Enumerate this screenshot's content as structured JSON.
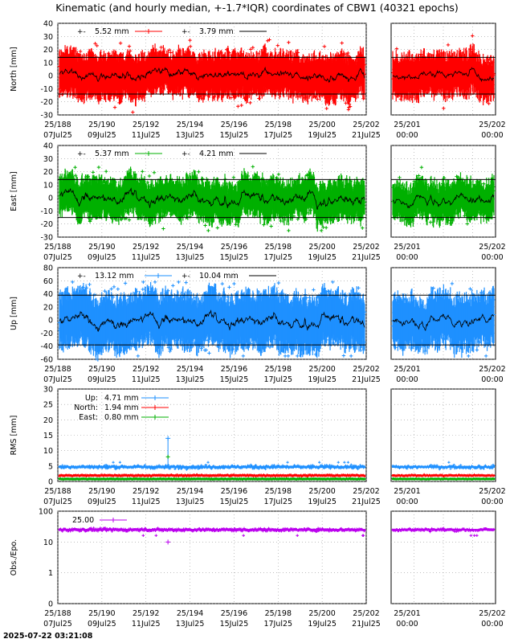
{
  "title": "Kinematic (and hourly median, +-1.7*IQR) coordinates of CBW1 (40321 epochs)",
  "timestamp": "2025-07-22 03:21:08",
  "colors": {
    "north": "#ff0000",
    "east": "#00b000",
    "up": "#1e90ff",
    "obs": "#bb00ee",
    "median": "#000000"
  },
  "chart_data": [
    {
      "id": "north",
      "type": "scatter",
      "ylabel": "North [mm]",
      "ylim": [
        -30,
        40
      ],
      "yticks": [
        -30,
        -20,
        -10,
        0,
        10,
        20,
        30,
        40
      ],
      "iqr_band": [
        -14,
        14
      ],
      "legend": [
        {
          "text": "5.52 mm",
          "color": "#ff0000",
          "marker": "+-"
        },
        {
          "text": "3.79 mm",
          "color": "#000000",
          "marker": "+-"
        }
      ],
      "series": [
        {
          "kind": "kinematic",
          "color": "#ff0000",
          "spread": 9,
          "max": 40,
          "min": -30
        },
        {
          "kind": "median",
          "color": "#000000",
          "spread": 3
        }
      ]
    },
    {
      "id": "east",
      "type": "scatter",
      "ylabel": "East [mm]",
      "ylim": [
        -30,
        40
      ],
      "yticks": [
        -30,
        -20,
        -10,
        0,
        10,
        20,
        30,
        40
      ],
      "iqr_band": [
        -15,
        14
      ],
      "legend": [
        {
          "text": "5.37 mm",
          "color": "#00b000",
          "marker": "+-"
        },
        {
          "text": "4.21 mm",
          "color": "#000000",
          "marker": "+-"
        }
      ],
      "series": [
        {
          "kind": "kinematic",
          "color": "#00b000",
          "spread": 8,
          "max": 32,
          "min": -25
        },
        {
          "kind": "median",
          "color": "#000000",
          "spread": 4
        }
      ]
    },
    {
      "id": "up",
      "type": "scatter",
      "ylabel": "Up [mm]",
      "ylim": [
        -60,
        80
      ],
      "yticks": [
        -60,
        -40,
        -20,
        0,
        20,
        40,
        60,
        80
      ],
      "iqr_band": [
        -38,
        38
      ],
      "legend": [
        {
          "text": "13.12 mm",
          "color": "#1e90ff",
          "marker": "+-"
        },
        {
          "text": "10.04 mm",
          "color": "#000000",
          "marker": "+-"
        }
      ],
      "series": [
        {
          "kind": "kinematic",
          "color": "#1e90ff",
          "spread": 22,
          "max": 58,
          "min": -55
        },
        {
          "kind": "median",
          "color": "#000000",
          "spread": 8
        }
      ]
    },
    {
      "id": "rms",
      "type": "scatter",
      "ylabel": "RMS [mm]",
      "ylim": [
        0,
        30
      ],
      "yticks": [
        0,
        5,
        10,
        15,
        20,
        25,
        30
      ],
      "legend": [
        {
          "label": "Up:",
          "text": "4.71 mm",
          "color": "#1e90ff"
        },
        {
          "label": "North:",
          "text": "1.94 mm",
          "color": "#ff0000"
        },
        {
          "label": "East:",
          "text": "0.80 mm",
          "color": "#00b000"
        }
      ],
      "series": [
        {
          "name": "Up",
          "color": "#1e90ff",
          "mean": 4.71
        },
        {
          "name": "North",
          "color": "#ff0000",
          "mean": 1.94
        },
        {
          "name": "East",
          "color": "#00b000",
          "mean": 0.8
        }
      ]
    },
    {
      "id": "obs",
      "type": "scatter",
      "ylabel": "Obs./Epo.",
      "yscale": "log",
      "ylim": [
        0,
        100
      ],
      "yticks": [
        "0",
        "1",
        "10",
        "100"
      ],
      "legend": [
        {
          "text": "25.00",
          "color": "#bb00ee",
          "marker": "+-"
        }
      ],
      "series": [
        {
          "color": "#bb00ee",
          "mean": 25
        }
      ]
    }
  ],
  "x_axis_main": {
    "range": [
      "25/188",
      "25/202"
    ],
    "ticks": [
      {
        "doy": "25/188",
        "date": "07Jul25"
      },
      {
        "doy": "25/190",
        "date": "09Jul25"
      },
      {
        "doy": "25/192",
        "date": "11Jul25"
      },
      {
        "doy": "25/194",
        "date": "13Jul25"
      },
      {
        "doy": "25/196",
        "date": "15Jul25"
      },
      {
        "doy": "25/198",
        "date": "17Jul25"
      },
      {
        "doy": "25/200",
        "date": "19Jul25"
      },
      {
        "doy": "25/202",
        "date": "21Jul25"
      }
    ]
  },
  "x_axis_zoom": {
    "range": [
      "25/201",
      "25/202"
    ],
    "ticks": [
      {
        "doy": "25/201",
        "time": "00:00"
      },
      {
        "doy": "25/202",
        "time": "00:00"
      }
    ]
  }
}
